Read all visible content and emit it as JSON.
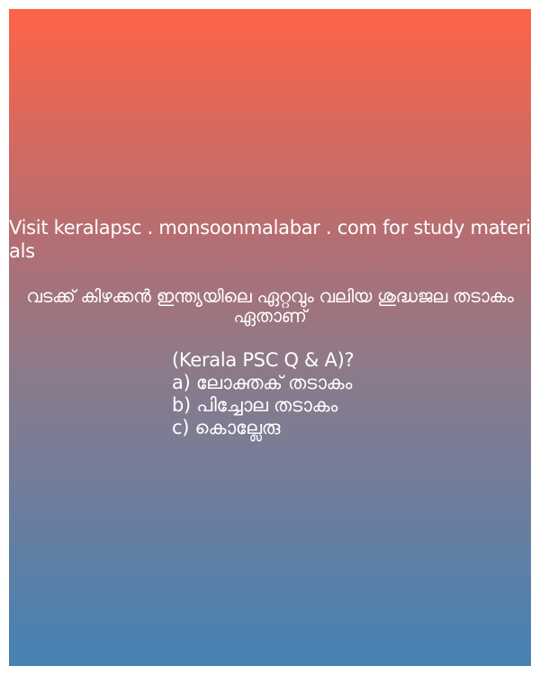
{
  "promo_text": "Visit keralapsc . monsoonmalabar . com for study materials",
  "question": "വടക്ക് കിഴക്കൻ ഇന്ത്യയിലെ ഏറ്റവും വലിയ ശുദ്ധജല തടാകം ഏതാണ്",
  "subtitle": "(Kerala PSC Q & A)?",
  "options": [
    "a) ലോക്തക് തടാകം",
    "b) പിച്ചോല തടാകം",
    "c) കൊല്ലേരു"
  ],
  "colors": {
    "gradient_top": "#ff6347",
    "gradient_bottom": "#4682b4",
    "text": "#ffffff"
  }
}
